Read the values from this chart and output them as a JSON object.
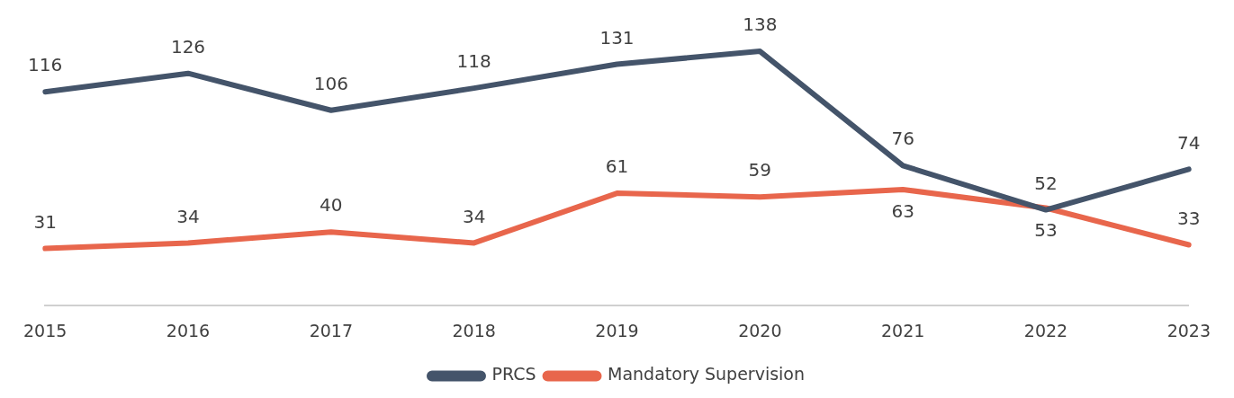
{
  "chart_data": {
    "type": "line",
    "categories": [
      "2015",
      "2016",
      "2017",
      "2018",
      "2019",
      "2020",
      "2021",
      "2022",
      "2023"
    ],
    "series": [
      {
        "name": "PRCS",
        "color": "#44546a",
        "values": [
          116,
          126,
          106,
          118,
          131,
          138,
          76,
          52,
          74
        ]
      },
      {
        "name": "Mandatory Supervision",
        "color": "#e8664c",
        "values": [
          31,
          34,
          40,
          34,
          61,
          59,
          63,
          53,
          33
        ]
      }
    ],
    "data_labels": true,
    "legend": "bottom",
    "grid": false,
    "marker": "none",
    "line_style": "solid"
  }
}
